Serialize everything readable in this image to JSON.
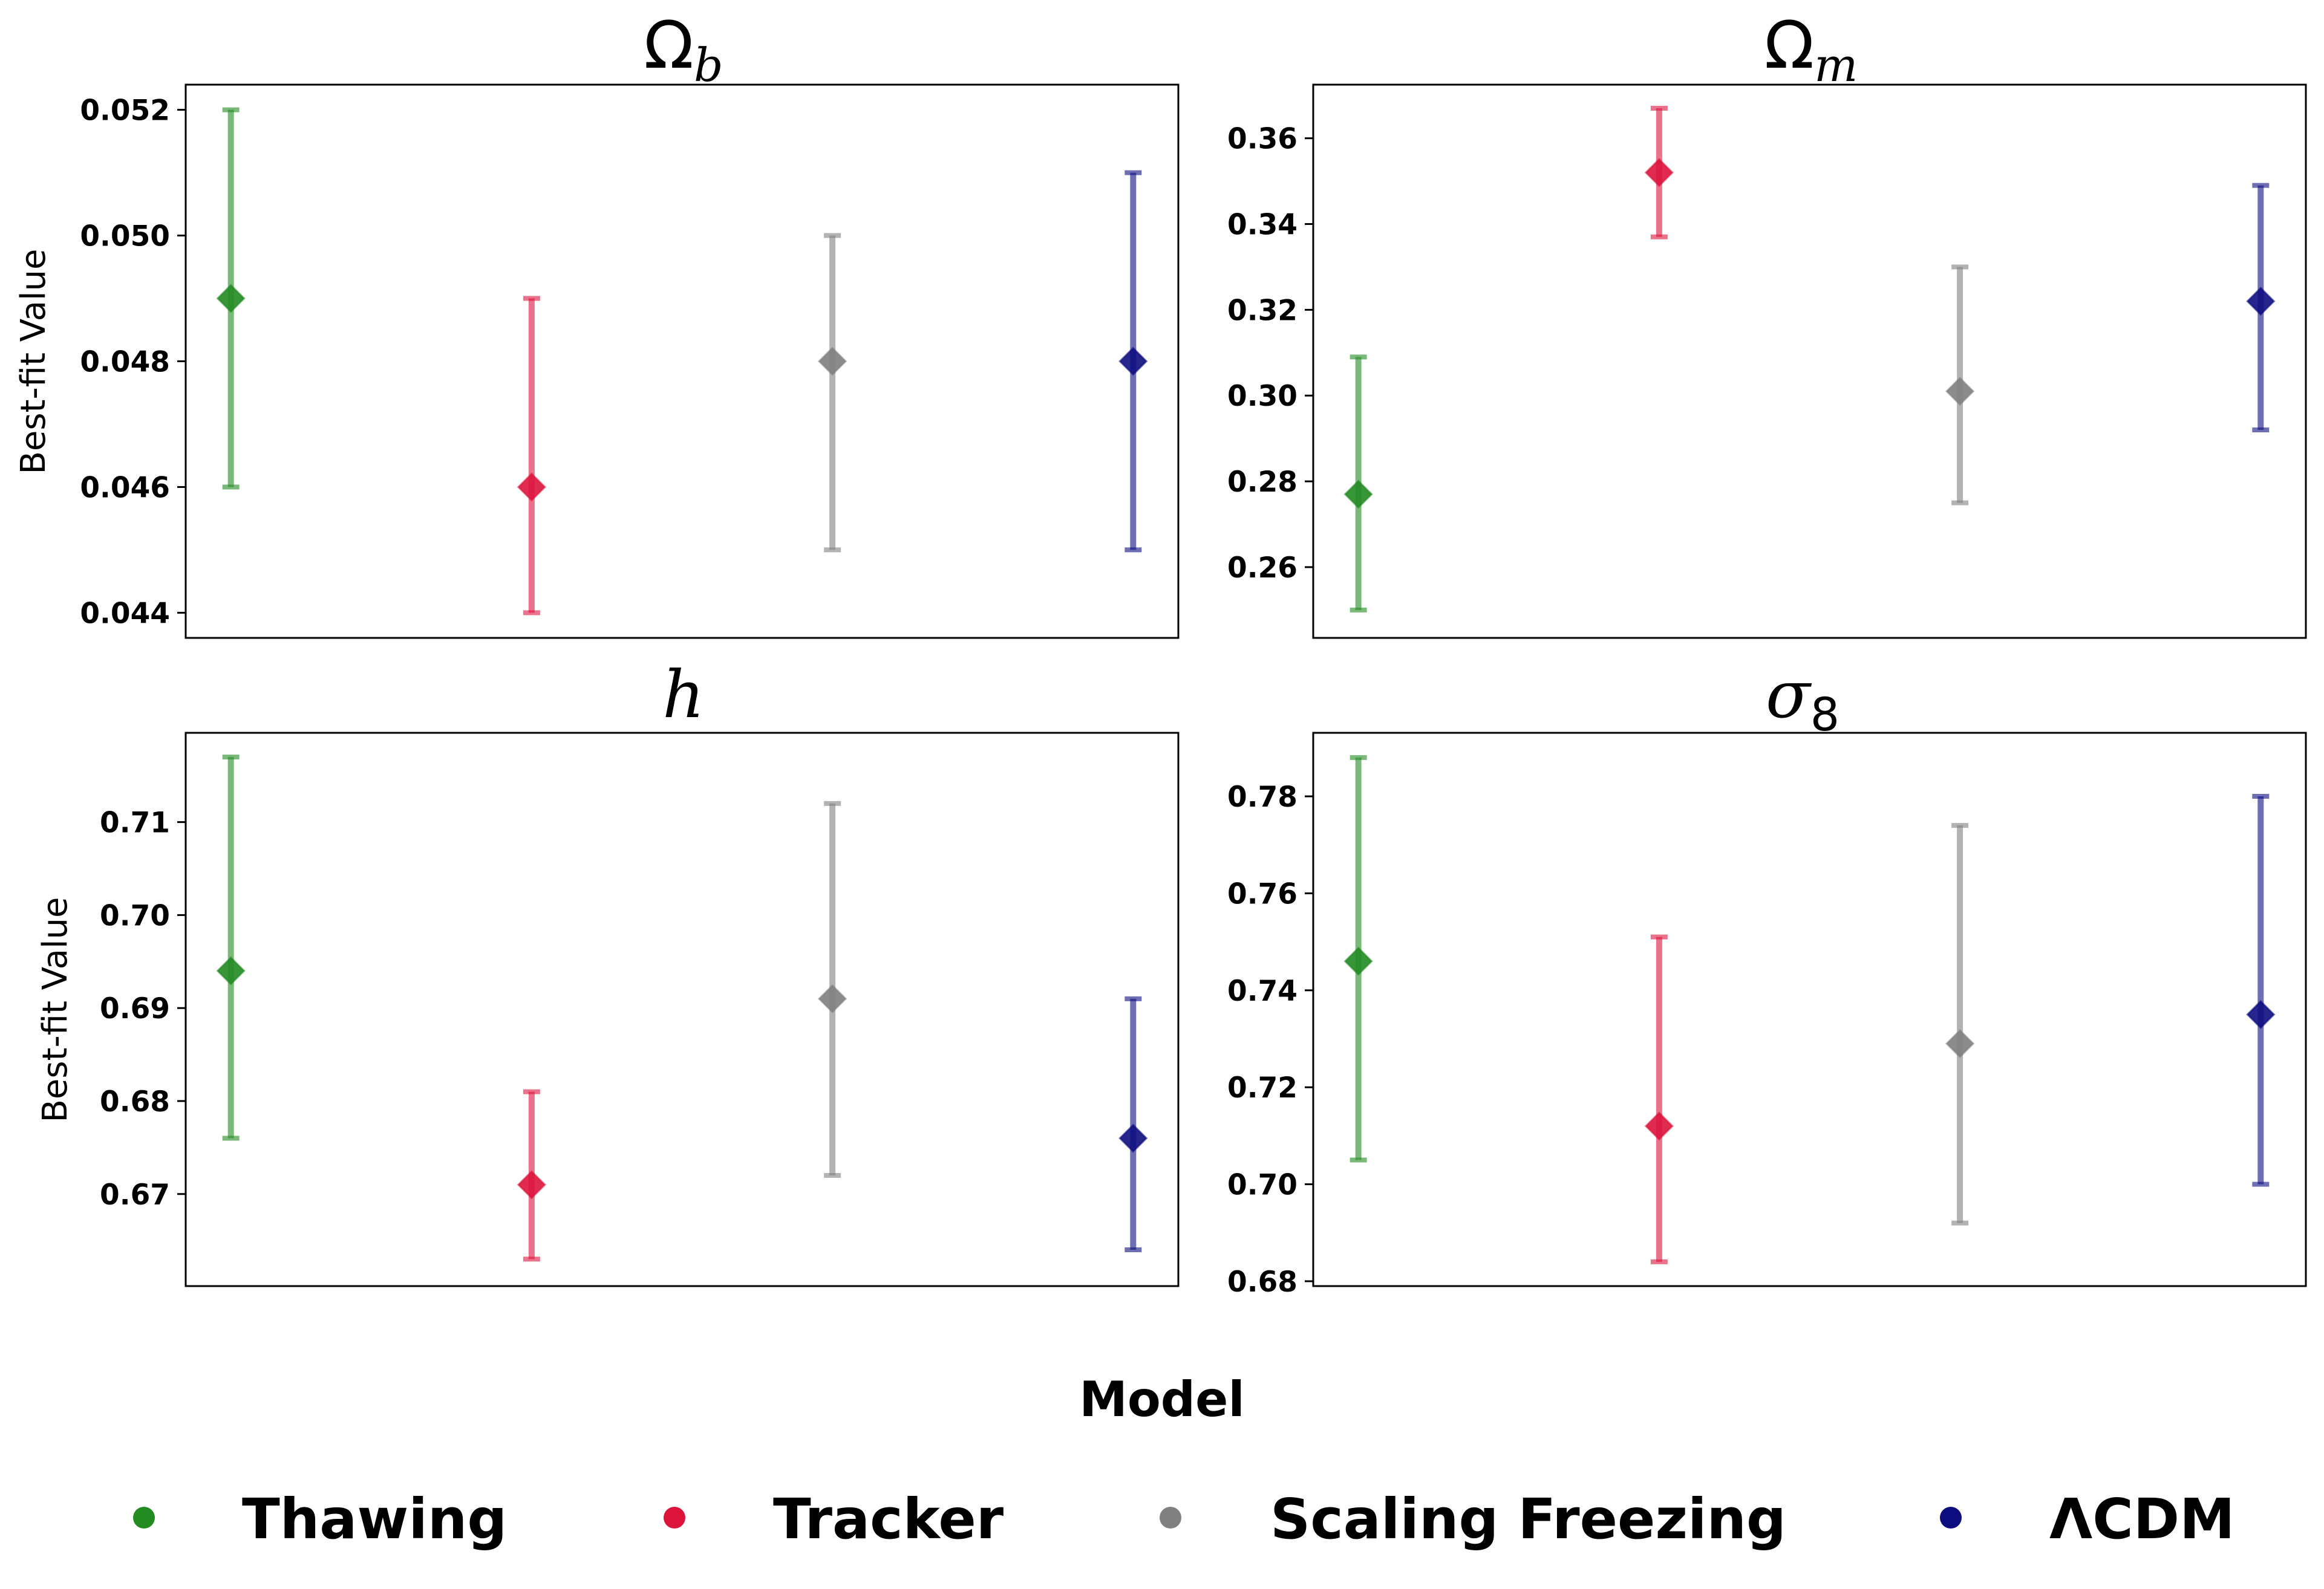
{
  "chart_data": [
    {
      "type": "errorbar",
      "title_symbol": "Ω",
      "title_subscript": "b",
      "ylabel": "Best-fit Value",
      "ylim": [
        0.0436,
        0.0524
      ],
      "yticks": [
        0.044,
        0.046,
        0.048,
        0.05,
        0.052
      ],
      "ytick_labels": [
        "0.044",
        "0.046",
        "0.048",
        "0.050",
        "0.052"
      ],
      "series": [
        {
          "name": "Thawing",
          "value": 0.049,
          "lower": 0.046,
          "upper": 0.052
        },
        {
          "name": "Tracker",
          "value": 0.046,
          "lower": 0.044,
          "upper": 0.049
        },
        {
          "name": "Scaling Freezing",
          "value": 0.048,
          "lower": 0.045,
          "upper": 0.05
        },
        {
          "name": "ΛCDM",
          "value": 0.048,
          "lower": 0.045,
          "upper": 0.051
        }
      ]
    },
    {
      "type": "errorbar",
      "title_symbol": "Ω",
      "title_subscript": "m",
      "ylabel": "",
      "ylim": [
        0.2435,
        0.3725
      ],
      "yticks": [
        0.26,
        0.28,
        0.3,
        0.32,
        0.34,
        0.36
      ],
      "ytick_labels": [
        "0.26",
        "0.28",
        "0.30",
        "0.32",
        "0.34",
        "0.36"
      ],
      "series": [
        {
          "name": "Thawing",
          "value": 0.277,
          "lower": 0.25,
          "upper": 0.309
        },
        {
          "name": "Tracker",
          "value": 0.352,
          "lower": 0.337,
          "upper": 0.367
        },
        {
          "name": "Scaling Freezing",
          "value": 0.301,
          "lower": 0.275,
          "upper": 0.33
        },
        {
          "name": "ΛCDM",
          "value": 0.322,
          "lower": 0.292,
          "upper": 0.349
        }
      ]
    },
    {
      "type": "errorbar",
      "title_symbol": "h",
      "title_subscript": "",
      "ylabel": "Best-fit Value",
      "ylim": [
        0.6601,
        0.7196
      ],
      "yticks": [
        0.67,
        0.68,
        0.69,
        0.7,
        0.71
      ],
      "ytick_labels": [
        "0.67",
        "0.68",
        "0.69",
        "0.70",
        "0.71"
      ],
      "series": [
        {
          "name": "Thawing",
          "value": 0.694,
          "lower": 0.676,
          "upper": 0.717
        },
        {
          "name": "Tracker",
          "value": 0.671,
          "lower": 0.663,
          "upper": 0.681
        },
        {
          "name": "Scaling Freezing",
          "value": 0.691,
          "lower": 0.672,
          "upper": 0.712
        },
        {
          "name": "ΛCDM",
          "value": 0.676,
          "lower": 0.664,
          "upper": 0.691
        }
      ]
    },
    {
      "type": "errorbar",
      "title_symbol": "σ",
      "title_subscript": "8",
      "ylabel": "",
      "ylim": [
        0.679,
        0.7931
      ],
      "yticks": [
        0.68,
        0.7,
        0.72,
        0.74,
        0.76,
        0.78
      ],
      "ytick_labels": [
        "0.68",
        "0.70",
        "0.72",
        "0.74",
        "0.76",
        "0.78"
      ],
      "series": [
        {
          "name": "Thawing",
          "value": 0.746,
          "lower": 0.705,
          "upper": 0.788
        },
        {
          "name": "Tracker",
          "value": 0.712,
          "lower": 0.684,
          "upper": 0.751
        },
        {
          "name": "Scaling Freezing",
          "value": 0.729,
          "lower": 0.692,
          "upper": 0.774
        },
        {
          "name": "ΛCDM",
          "value": 0.735,
          "lower": 0.7,
          "upper": 0.78
        }
      ]
    }
  ],
  "xlabel": "Model",
  "legend": [
    {
      "label": "Thawing",
      "color": "#228b22"
    },
    {
      "label": "Tracker",
      "color": "#dc143c"
    },
    {
      "label": "Scaling Freezing",
      "color": "#808080"
    },
    {
      "label": "ΛCDM",
      "color": "#0d0d80"
    }
  ],
  "styles": {
    "bar_opacity": 0.6,
    "marker": "diamond"
  }
}
